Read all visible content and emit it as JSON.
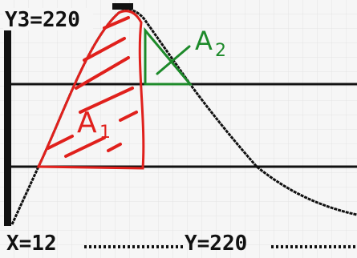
{
  "screen": {
    "top_label": "Y3=220",
    "bottom_x": "X=12",
    "bottom_y": "Y=220"
  },
  "annotations": [
    {
      "letter": "A",
      "subscript": "1"
    },
    {
      "letter": "A",
      "subscript": "2"
    }
  ]
}
